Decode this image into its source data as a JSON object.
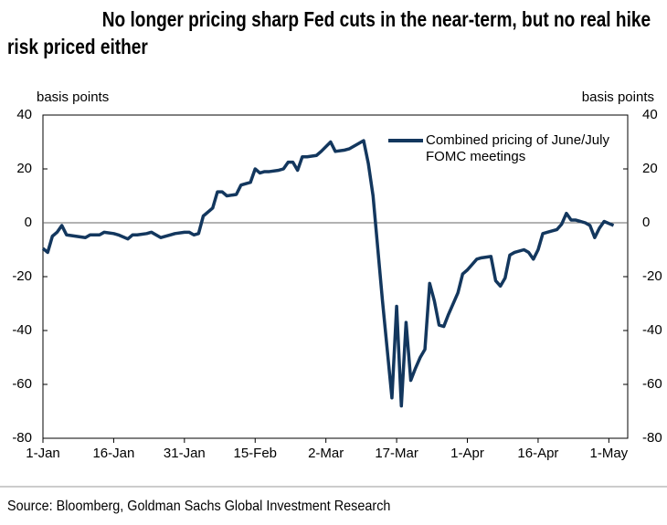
{
  "chart_data": {
    "type": "line",
    "title": "No longer pricing sharp Fed cuts in the near-term, but no real hike risk priced either",
    "ylabel": "basis points",
    "y2label": "basis points",
    "source": "Source: Bloomberg, Goldman Sachs Global Investment Research",
    "xlim": [
      0,
      124
    ],
    "xticks": [
      {
        "value": 0,
        "label": "1-Jan"
      },
      {
        "value": 15,
        "label": "16-Jan"
      },
      {
        "value": 30,
        "label": "31-Jan"
      },
      {
        "value": 45,
        "label": "15-Feb"
      },
      {
        "value": 60,
        "label": "2-Mar"
      },
      {
        "value": 75,
        "label": "17-Mar"
      },
      {
        "value": 90,
        "label": "1-Apr"
      },
      {
        "value": 105,
        "label": "16-Apr"
      },
      {
        "value": 120,
        "label": "1-May"
      }
    ],
    "ylim": [
      -80,
      40
    ],
    "yticks": [
      -80,
      -60,
      -40,
      -20,
      0,
      20,
      40
    ],
    "y2lim": [
      -80,
      40
    ],
    "y2ticks": [
      -80,
      -60,
      -40,
      -20,
      0,
      20,
      40
    ],
    "zero_line": true,
    "series": [
      {
        "name": "Combined pricing of June/July FOMC meetings",
        "color": "#13375e",
        "x": [
          0,
          1,
          2,
          3,
          4,
          5,
          7,
          9,
          10,
          12,
          13,
          15,
          16,
          18,
          19,
          20,
          22,
          23,
          25,
          27,
          28,
          30,
          31,
          32,
          33,
          34,
          36,
          37,
          38,
          39,
          41,
          42,
          43,
          44,
          45,
          46,
          47,
          48,
          50,
          51,
          52,
          53,
          54,
          55,
          56,
          58,
          59,
          61,
          62,
          64,
          65,
          67,
          68,
          69,
          70,
          72,
          74,
          75,
          76,
          77,
          78,
          79,
          80,
          81,
          82,
          83,
          84,
          85,
          86,
          88,
          89,
          90,
          91,
          92,
          93,
          95,
          96,
          97,
          98,
          99,
          100,
          102,
          103,
          104,
          105,
          106,
          107,
          109,
          110,
          111,
          112,
          113,
          115,
          116,
          117,
          118,
          119,
          121
        ],
        "values": [
          -9.5,
          -11,
          -5,
          -3.5,
          -1,
          -4.5,
          -5,
          -5.5,
          -4.5,
          -4.5,
          -3.5,
          -4,
          -4.5,
          -6,
          -4.5,
          -4.5,
          -4,
          -3.5,
          -5.5,
          -4.5,
          -4,
          -3.5,
          -3.5,
          -4.5,
          -4,
          2.5,
          5.5,
          11.5,
          11.5,
          10,
          10.5,
          14,
          14.5,
          15,
          20,
          18.5,
          19,
          19,
          19.5,
          20,
          22.5,
          22.5,
          19.5,
          24.5,
          24.5,
          25,
          26.5,
          30,
          26.5,
          27,
          27.5,
          29.5,
          30.5,
          22,
          10,
          -29,
          -65,
          -31,
          -68,
          -37,
          -58.5,
          -54,
          -50,
          -47,
          -22.5,
          -29,
          -38,
          -38.5,
          -34,
          -26,
          -19,
          -17.5,
          -15.5,
          -13.5,
          -13,
          -12.5,
          -21.5,
          -23.5,
          -20.5,
          -12,
          -11,
          -10,
          -11,
          -13.5,
          -10,
          -4,
          -3.5,
          -2.5,
          -0.5,
          3.5,
          1,
          1,
          0,
          -1,
          -5.5,
          -2,
          0.5,
          -1
        ]
      }
    ]
  }
}
